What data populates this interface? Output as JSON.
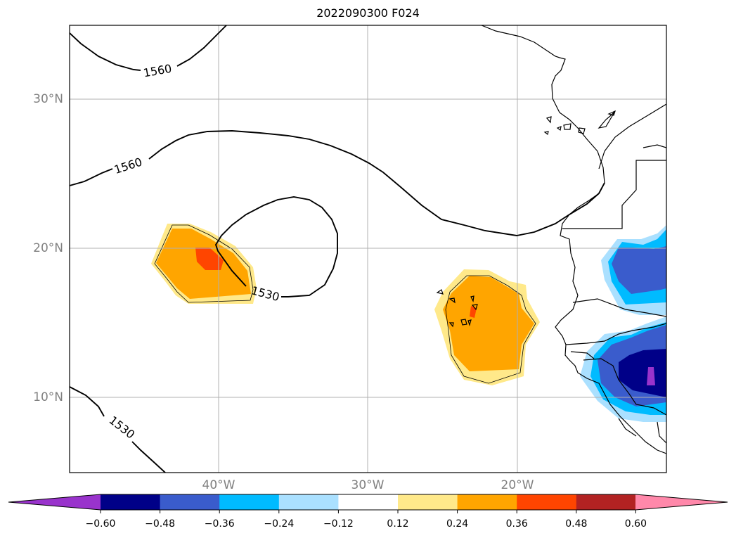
{
  "title": "2022090300 F024",
  "lat_labels": [
    {
      "text": "30°N",
      "lat": 30
    },
    {
      "text": "20°N",
      "lat": 20
    },
    {
      "text": "10°N",
      "lat": 10
    }
  ],
  "lon_labels": [
    {
      "text": "40°W",
      "lon": -40
    },
    {
      "text": "30°W",
      "lon": -30
    },
    {
      "text": "20°W",
      "lon": -20
    }
  ],
  "extent": {
    "lon_min": -50,
    "lon_max": -10,
    "lat_min": 5,
    "lat_max": 35
  },
  "contour_labels": [
    {
      "text": "1560",
      "id": "upper-left"
    },
    {
      "text": "1560",
      "id": "middle"
    },
    {
      "text": "1530",
      "id": "center"
    },
    {
      "text": "1530",
      "id": "lower-left"
    }
  ],
  "colorbar": {
    "colors": [
      "#9933cc",
      "#000088",
      "#3a5ccc",
      "#00bbff",
      "#aae0ff",
      "#ffffff",
      "#ffe98a",
      "#ffa500",
      "#ff4500",
      "#b22222",
      "#ff88aa"
    ],
    "ticks": [
      "−0.60",
      "−0.48",
      "−0.36",
      "−0.24",
      "−0.12",
      "0.12",
      "0.24",
      "0.36",
      "0.48",
      "0.60"
    ]
  }
}
